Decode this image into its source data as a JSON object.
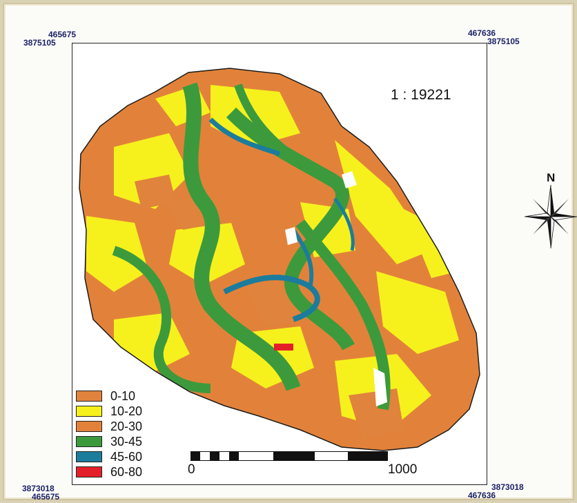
{
  "map": {
    "scale_label": "1 : 19221",
    "north_label": "N",
    "corners": {
      "top_left_easting": "465675",
      "top_left_northing": "3875105",
      "top_right_easting": "467636",
      "top_right_northing": "3875105",
      "bottom_left_northing": "3873018",
      "bottom_left_easting": "465675",
      "bottom_right_northing": "3873018",
      "bottom_right_easting": "467636"
    },
    "scalebar": {
      "start_label": "0",
      "end_label": "1000"
    },
    "legend": [
      {
        "label": "0-10",
        "color": "#e0833c"
      },
      {
        "label": "10-20",
        "color": "#f6f11d"
      },
      {
        "label": "20-30",
        "color": "#e2823a"
      },
      {
        "label": "30-45",
        "color": "#3c9a3c"
      },
      {
        "label": "45-60",
        "color": "#1c7c9c"
      },
      {
        "label": "60-80",
        "color": "#e3202a"
      }
    ]
  }
}
